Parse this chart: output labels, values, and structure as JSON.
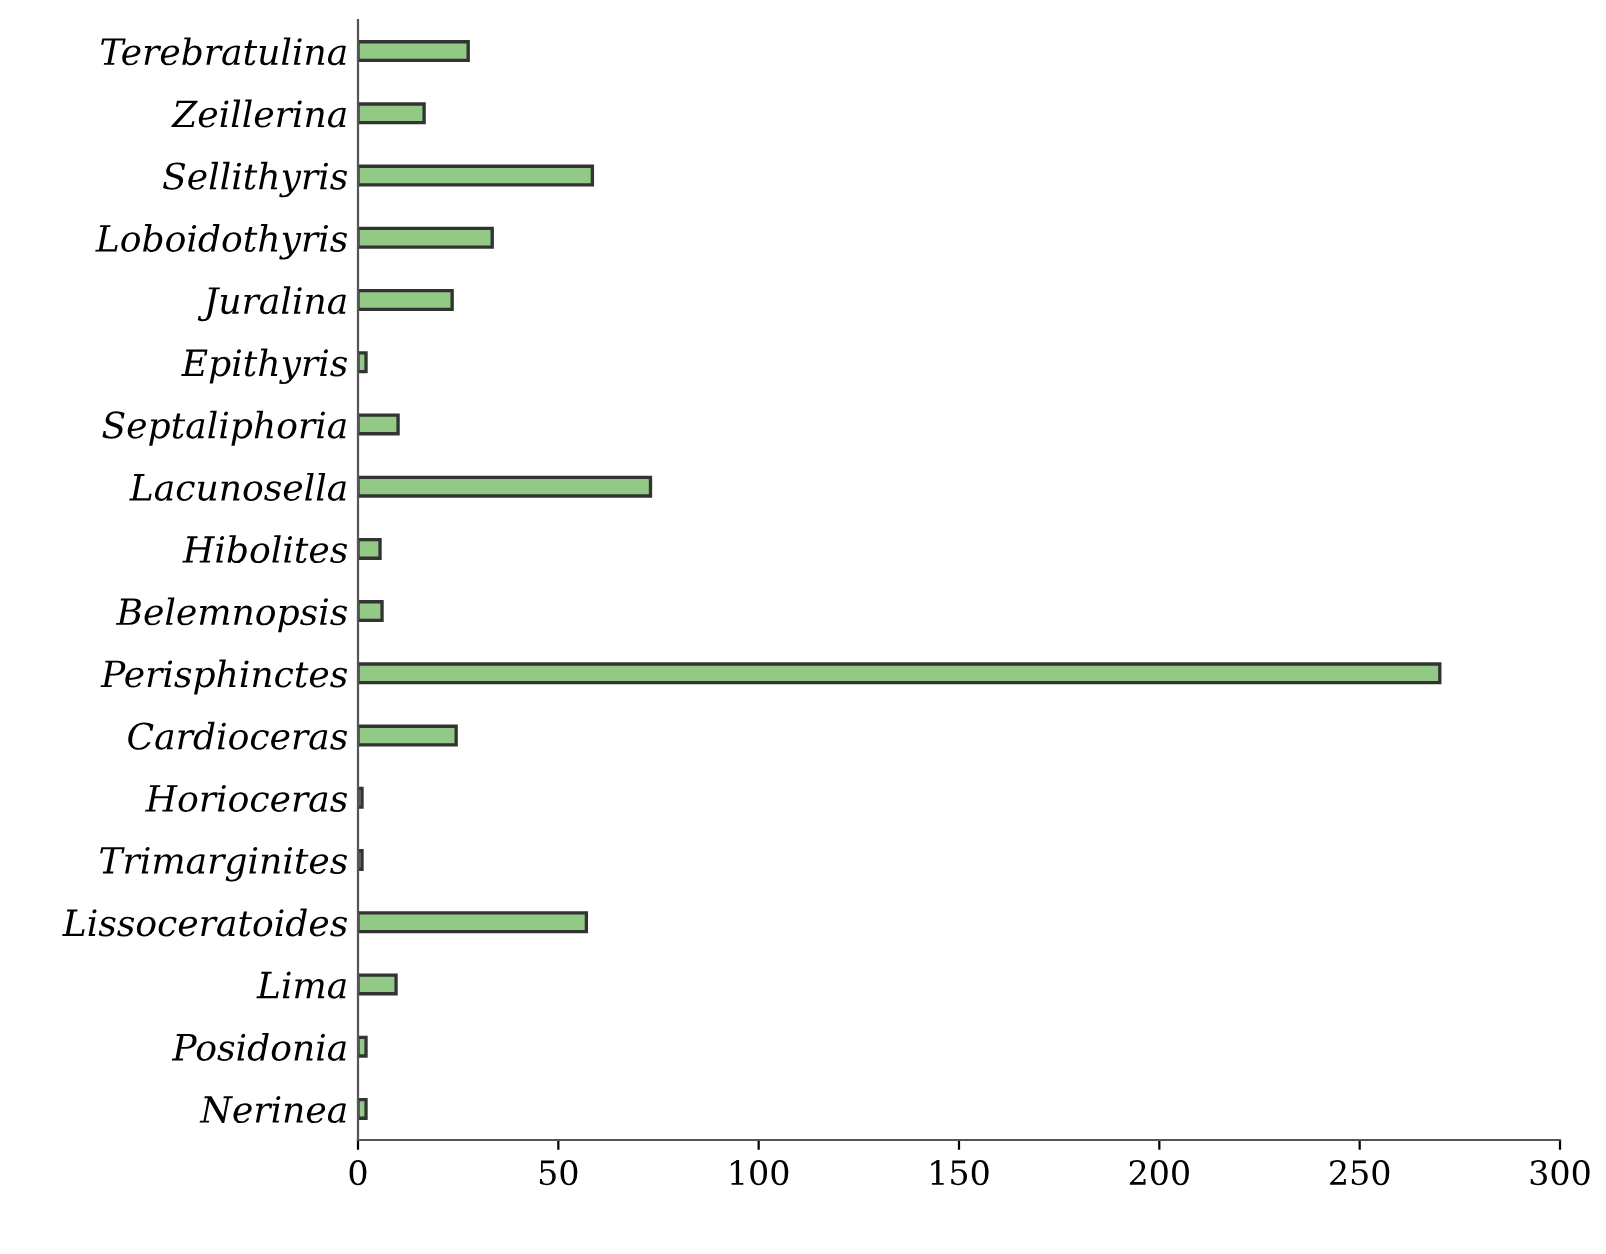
{
  "chart_data": {
    "type": "bar",
    "orientation": "horizontal",
    "categories": [
      "Terebratulina",
      "Zeillerina",
      "Sellithyris",
      "Loboidothyris",
      "Juralina",
      "Epithyris",
      "Septaliphoria",
      "Lacunosella",
      "Hibolites",
      "Belemnopsis",
      "Perisphinctes",
      "Cardioceras",
      "Horioceras",
      "Trimarginites",
      "Lissoceratoides",
      "Lima",
      "Posidonia",
      "Nerinea"
    ],
    "values": [
      27.5,
      16.5,
      58.5,
      33.5,
      23.5,
      2,
      10,
      73,
      5.5,
      6,
      270,
      24.5,
      1,
      1,
      57,
      9.5,
      2,
      2
    ],
    "color": "#93c987",
    "xlim": [
      0,
      300
    ],
    "xticks": [
      0,
      50,
      100,
      150,
      200,
      250,
      300
    ],
    "grid": false,
    "legend": false
  }
}
